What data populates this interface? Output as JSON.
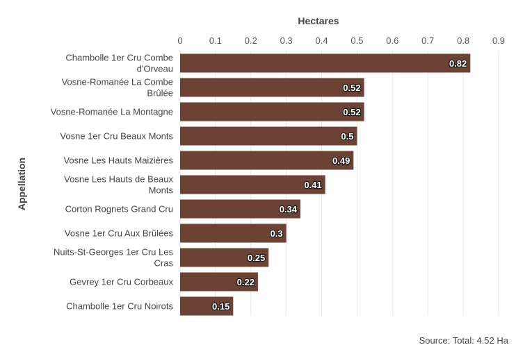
{
  "chart_data": {
    "type": "bar",
    "orientation": "horizontal",
    "xlabel": "Hectares",
    "ylabel": "Appellation",
    "xlim": [
      0,
      0.9
    ],
    "xticks": [
      "0",
      "0.1",
      "0.2",
      "0.3",
      "0.4",
      "0.5",
      "0.6",
      "0.7",
      "0.8",
      "0.9"
    ],
    "grid": true,
    "x_axis_position": "top",
    "bar_color": "#6b4233",
    "categories": [
      "Chambolle 1er Cru Combe d'Orveau",
      "Vosne-Romanée La Combe Brûlée",
      "Vosne-Romanée La Montagne",
      "Vosne 1er Cru Beaux Monts",
      "Vosne Les Hauts Maizières",
      "Vosne Les Hauts de Beaux Monts",
      "Corton Rognets Grand Cru",
      "Vosne 1er Cru Aux Brûlées",
      "Nuits-St-Georges 1er Cru Les Cras",
      "Gevrey 1er Cru Corbeaux",
      "Chambolle 1er Cru Noirots"
    ],
    "category_lines": [
      [
        "Chambolle 1er Cru Combe",
        "d'Orveau"
      ],
      [
        "Vosne-Romanée La Combe",
        "Brûlée"
      ],
      [
        "Vosne-Romanée La Montagne"
      ],
      [
        "Vosne 1er Cru Beaux Monts"
      ],
      [
        "Vosne Les Hauts Maizières"
      ],
      [
        "Vosne Les Hauts de Beaux",
        "Monts"
      ],
      [
        "Corton Rognets Grand Cru"
      ],
      [
        "Vosne 1er Cru Aux Brûlées"
      ],
      [
        "Nuits-St-Georges 1er Cru Les",
        "Cras"
      ],
      [
        "Gevrey 1er Cru Corbeaux"
      ],
      [
        "Chambolle 1er Cru Noirots"
      ]
    ],
    "values": [
      0.82,
      0.52,
      0.52,
      0.5,
      0.49,
      0.41,
      0.34,
      0.3,
      0.25,
      0.22,
      0.15
    ],
    "value_labels": [
      "0.82",
      "0.52",
      "0.52",
      "0.5",
      "0.49",
      "0.41",
      "0.34",
      "0.3",
      "0.25",
      "0.22",
      "0.15"
    ]
  },
  "footer": {
    "source": "Source: Total: 4.52 Ha"
  }
}
